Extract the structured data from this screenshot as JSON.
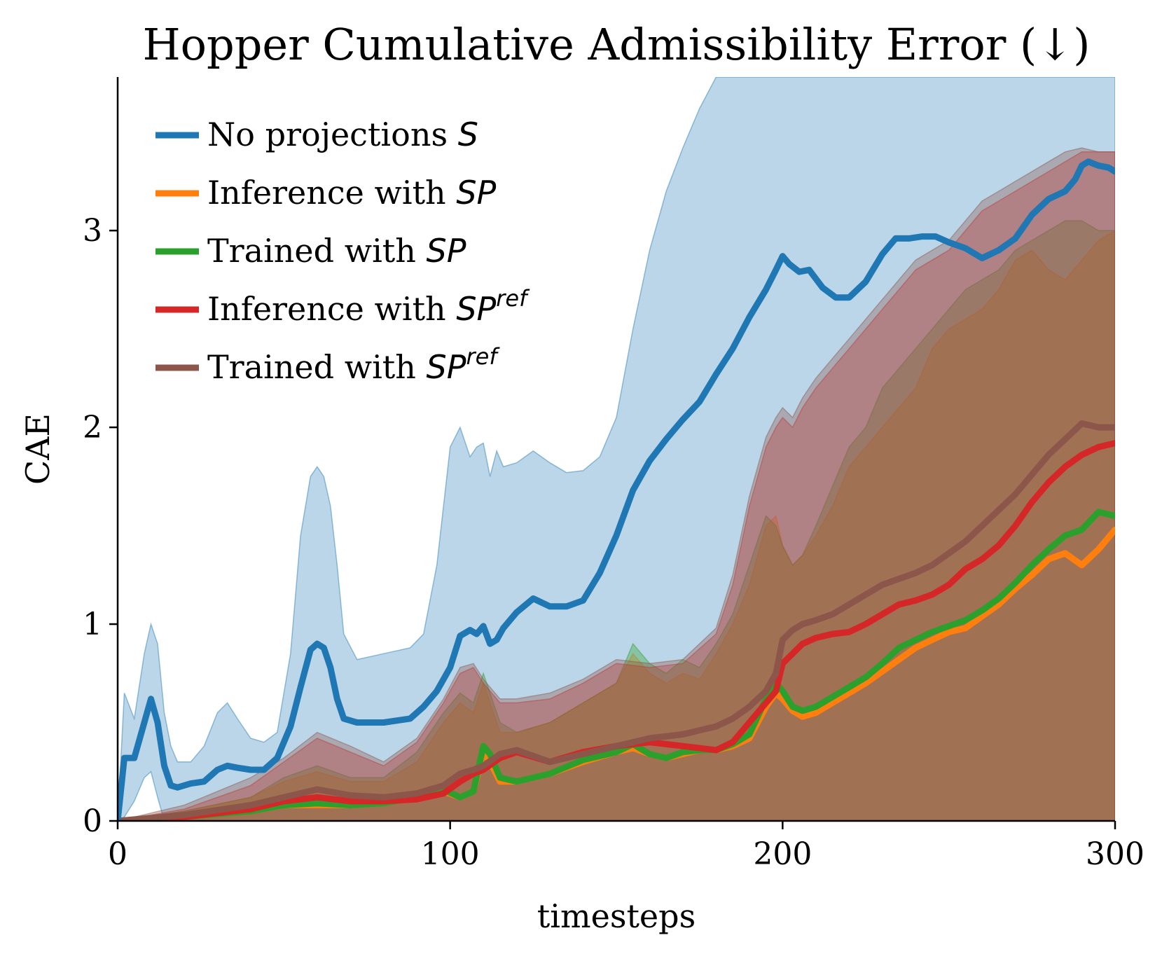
{
  "chart_data": {
    "type": "line",
    "title": "Hopper Cumulative Admissibility Error (↓)",
    "xlabel": "timesteps",
    "ylabel": "CAE",
    "xlim": [
      0,
      300
    ],
    "ylim": [
      0,
      3.78
    ],
    "xticks": [
      0,
      100,
      200,
      300
    ],
    "yticks": [
      0,
      1,
      2,
      3
    ],
    "xtick_labels": [
      "0",
      "100",
      "200",
      "300"
    ],
    "ytick_labels": [
      "0",
      "1",
      "2",
      "3"
    ],
    "grid": false,
    "legend_position": "top-left",
    "series": [
      {
        "name": "No projections",
        "math": "S",
        "sup": "",
        "color": "#1f77b4",
        "x": [
          0,
          2,
          5,
          8,
          10,
          12,
          14,
          16,
          18,
          22,
          26,
          30,
          33,
          36,
          40,
          44,
          48,
          52,
          55,
          58,
          60,
          62,
          64,
          66,
          68,
          72,
          80,
          88,
          92,
          96,
          100,
          103,
          106,
          108,
          110,
          112,
          114,
          116,
          120,
          125,
          130,
          135,
          140,
          145,
          150,
          155,
          160,
          165,
          170,
          175,
          180,
          185,
          190,
          195,
          198,
          200,
          202,
          205,
          208,
          212,
          216,
          220,
          225,
          230,
          234,
          238,
          242,
          246,
          250,
          255,
          260,
          265,
          270,
          275,
          280,
          285,
          288,
          290,
          292,
          295,
          298,
          300
        ],
        "y": [
          0.0,
          0.32,
          0.32,
          0.5,
          0.62,
          0.5,
          0.28,
          0.18,
          0.17,
          0.19,
          0.2,
          0.26,
          0.28,
          0.27,
          0.26,
          0.26,
          0.32,
          0.48,
          0.68,
          0.87,
          0.9,
          0.88,
          0.78,
          0.62,
          0.52,
          0.5,
          0.5,
          0.52,
          0.58,
          0.66,
          0.78,
          0.94,
          0.97,
          0.95,
          0.99,
          0.9,
          0.92,
          0.98,
          1.06,
          1.13,
          1.09,
          1.09,
          1.12,
          1.26,
          1.45,
          1.68,
          1.83,
          1.94,
          2.04,
          2.13,
          2.27,
          2.4,
          2.56,
          2.7,
          2.8,
          2.87,
          2.83,
          2.79,
          2.8,
          2.71,
          2.66,
          2.66,
          2.74,
          2.88,
          2.96,
          2.96,
          2.97,
          2.97,
          2.94,
          2.91,
          2.86,
          2.9,
          2.96,
          3.08,
          3.16,
          3.2,
          3.26,
          3.33,
          3.35,
          3.33,
          3.32,
          3.3
        ],
        "band_lower": [
          0.0,
          0.02,
          0.1,
          0.22,
          0.25,
          0.12,
          0.0,
          0.0,
          0.0,
          0.0,
          0.0,
          0.0,
          0.0,
          0.0,
          0.0,
          0.0,
          0.0,
          0.0,
          0.0,
          0.0,
          0.0,
          0.0,
          0.0,
          0.0,
          0.0,
          0.0,
          0.0,
          0.0,
          0.0,
          0.0,
          0.0,
          0.0,
          0.0,
          0.0,
          0.0,
          0.0,
          0.0,
          0.0,
          0.0,
          0.0,
          0.0,
          0.0,
          0.0,
          0.0,
          0.0,
          0.0,
          0.0,
          0.0,
          0.0,
          0.0,
          0.0,
          0.0,
          0.0,
          0.0,
          0.0,
          0.0,
          0.0,
          0.0,
          0.0,
          0.0,
          0.0,
          0.0,
          0.0,
          0.0,
          0.0,
          0.0,
          0.0,
          0.0,
          0.0,
          0.0,
          0.0,
          0.0,
          0.0,
          0.0,
          0.0,
          0.0,
          0.0,
          0.0,
          0.0,
          0.0,
          0.0,
          0.0
        ],
        "band_upper": [
          0.0,
          0.65,
          0.52,
          0.85,
          1.0,
          0.9,
          0.55,
          0.38,
          0.3,
          0.3,
          0.38,
          0.55,
          0.6,
          0.52,
          0.42,
          0.4,
          0.45,
          0.85,
          1.45,
          1.75,
          1.8,
          1.75,
          1.6,
          1.3,
          0.95,
          0.82,
          0.85,
          0.88,
          0.95,
          1.3,
          1.9,
          2.0,
          1.85,
          1.9,
          1.92,
          1.75,
          1.88,
          1.8,
          1.82,
          1.88,
          1.82,
          1.77,
          1.78,
          1.85,
          2.05,
          2.5,
          2.9,
          3.2,
          3.42,
          3.62,
          3.78,
          3.78,
          3.78,
          3.78,
          3.78,
          3.78,
          3.78,
          3.78,
          3.78,
          3.78,
          3.78,
          3.78,
          3.78,
          3.78,
          3.78,
          3.78,
          3.78,
          3.78,
          3.78,
          3.78,
          3.78,
          3.78,
          3.78,
          3.78,
          3.78,
          3.78,
          3.78,
          3.78,
          3.78,
          3.78,
          3.78,
          3.78
        ]
      },
      {
        "name": "Inference with",
        "math": "SP",
        "sup": "",
        "color": "#ff7f0e",
        "x": [
          0,
          20,
          40,
          50,
          60,
          70,
          80,
          90,
          98,
          103,
          107,
          110,
          112,
          115,
          120,
          130,
          140,
          150,
          155,
          160,
          165,
          170,
          175,
          180,
          185,
          190,
          195,
          198,
          200,
          203,
          206,
          210,
          215,
          220,
          225,
          230,
          235,
          240,
          245,
          250,
          255,
          260,
          265,
          270,
          275,
          280,
          285,
          290,
          295,
          300
        ],
        "y": [
          0.0,
          0.02,
          0.05,
          0.08,
          0.08,
          0.08,
          0.09,
          0.12,
          0.15,
          0.12,
          0.15,
          0.35,
          0.3,
          0.2,
          0.2,
          0.24,
          0.3,
          0.35,
          0.37,
          0.34,
          0.32,
          0.34,
          0.36,
          0.36,
          0.38,
          0.42,
          0.58,
          0.65,
          0.62,
          0.56,
          0.53,
          0.55,
          0.6,
          0.65,
          0.7,
          0.76,
          0.82,
          0.88,
          0.92,
          0.96,
          0.98,
          1.04,
          1.1,
          1.18,
          1.25,
          1.33,
          1.36,
          1.3,
          1.38,
          1.48
        ],
        "band_lower": [
          0.0,
          0.0,
          0.0,
          0.0,
          0.0,
          0.0,
          0.0,
          0.0,
          0.0,
          0.0,
          0.0,
          0.0,
          0.0,
          0.0,
          0.0,
          0.0,
          0.0,
          0.0,
          0.0,
          0.0,
          0.0,
          0.0,
          0.0,
          0.0,
          0.0,
          0.0,
          0.0,
          0.0,
          0.0,
          0.0,
          0.0,
          0.0,
          0.0,
          0.0,
          0.0,
          0.0,
          0.0,
          0.0,
          0.0,
          0.0,
          0.0,
          0.0,
          0.0,
          0.0,
          0.0,
          0.0,
          0.0,
          0.0,
          0.0,
          0.0
        ],
        "band_upper": [
          0.0,
          0.05,
          0.12,
          0.2,
          0.25,
          0.2,
          0.2,
          0.3,
          0.5,
          0.6,
          0.55,
          0.7,
          0.6,
          0.45,
          0.45,
          0.5,
          0.6,
          0.7,
          0.85,
          0.75,
          0.7,
          0.75,
          0.72,
          0.85,
          1.0,
          1.2,
          1.5,
          1.55,
          1.4,
          1.3,
          1.35,
          1.45,
          1.6,
          1.8,
          1.9,
          2.0,
          2.1,
          2.2,
          2.4,
          2.5,
          2.55,
          2.6,
          2.7,
          2.85,
          2.9,
          2.8,
          2.75,
          2.85,
          2.95,
          3.0
        ]
      },
      {
        "name": "Trained with",
        "math": "SP",
        "sup": "",
        "color": "#2ca02c",
        "x": [
          0,
          20,
          40,
          50,
          60,
          70,
          80,
          90,
          98,
          103,
          107,
          110,
          112,
          115,
          120,
          130,
          140,
          150,
          155,
          160,
          165,
          170,
          175,
          180,
          185,
          190,
          195,
          198,
          200,
          203,
          206,
          210,
          215,
          220,
          225,
          230,
          235,
          240,
          245,
          250,
          255,
          260,
          265,
          270,
          275,
          280,
          285,
          290,
          295,
          300
        ],
        "y": [
          0.0,
          0.02,
          0.05,
          0.08,
          0.09,
          0.08,
          0.09,
          0.12,
          0.16,
          0.12,
          0.15,
          0.38,
          0.34,
          0.22,
          0.2,
          0.24,
          0.31,
          0.35,
          0.39,
          0.34,
          0.32,
          0.35,
          0.36,
          0.36,
          0.39,
          0.44,
          0.62,
          0.7,
          0.66,
          0.58,
          0.56,
          0.58,
          0.63,
          0.68,
          0.73,
          0.8,
          0.88,
          0.92,
          0.96,
          0.99,
          1.02,
          1.07,
          1.13,
          1.21,
          1.3,
          1.38,
          1.45,
          1.48,
          1.57,
          1.55
        ],
        "band_lower": [
          0.0,
          0.0,
          0.0,
          0.0,
          0.0,
          0.0,
          0.0,
          0.0,
          0.0,
          0.0,
          0.0,
          0.0,
          0.0,
          0.0,
          0.0,
          0.0,
          0.0,
          0.0,
          0.0,
          0.0,
          0.0,
          0.0,
          0.0,
          0.0,
          0.0,
          0.0,
          0.0,
          0.0,
          0.0,
          0.0,
          0.0,
          0.0,
          0.0,
          0.0,
          0.0,
          0.0,
          0.0,
          0.0,
          0.0,
          0.0,
          0.0,
          0.0,
          0.0,
          0.0,
          0.0,
          0.0,
          0.0,
          0.0,
          0.0,
          0.0
        ],
        "band_upper": [
          0.0,
          0.05,
          0.12,
          0.22,
          0.28,
          0.22,
          0.22,
          0.35,
          0.55,
          0.65,
          0.6,
          0.75,
          0.65,
          0.5,
          0.45,
          0.5,
          0.6,
          0.7,
          0.9,
          0.8,
          0.75,
          0.82,
          0.78,
          0.9,
          1.05,
          1.3,
          1.55,
          1.5,
          1.4,
          1.3,
          1.35,
          1.5,
          1.7,
          1.9,
          2.0,
          2.2,
          2.3,
          2.4,
          2.5,
          2.6,
          2.7,
          2.75,
          2.8,
          2.9,
          2.95,
          3.0,
          3.05,
          3.05,
          3.0,
          3.0
        ]
      },
      {
        "name": "Inference with",
        "math": "SP",
        "sup": "ref",
        "color": "#d62728",
        "x": [
          0,
          20,
          40,
          50,
          60,
          70,
          80,
          90,
          98,
          103,
          107,
          110,
          115,
          120,
          130,
          140,
          150,
          160,
          170,
          180,
          185,
          190,
          195,
          198,
          200,
          203,
          206,
          210,
          215,
          220,
          225,
          230,
          235,
          240,
          245,
          250,
          255,
          260,
          265,
          270,
          275,
          280,
          285,
          290,
          295,
          300
        ],
        "y": [
          0.0,
          0.02,
          0.06,
          0.1,
          0.12,
          0.1,
          0.1,
          0.11,
          0.14,
          0.2,
          0.24,
          0.26,
          0.32,
          0.35,
          0.3,
          0.35,
          0.38,
          0.4,
          0.38,
          0.36,
          0.4,
          0.5,
          0.6,
          0.66,
          0.8,
          0.85,
          0.9,
          0.93,
          0.95,
          0.96,
          1.0,
          1.05,
          1.1,
          1.12,
          1.15,
          1.2,
          1.28,
          1.33,
          1.4,
          1.5,
          1.62,
          1.72,
          1.8,
          1.86,
          1.9,
          1.92
        ],
        "band_lower": [
          0.0,
          0.0,
          0.0,
          0.0,
          0.0,
          0.0,
          0.0,
          0.0,
          0.0,
          0.0,
          0.0,
          0.0,
          0.0,
          0.0,
          0.0,
          0.0,
          0.0,
          0.0,
          0.0,
          0.0,
          0.0,
          0.0,
          0.0,
          0.0,
          0.0,
          0.0,
          0.0,
          0.0,
          0.0,
          0.0,
          0.0,
          0.0,
          0.0,
          0.0,
          0.0,
          0.0,
          0.0,
          0.0,
          0.0,
          0.0,
          0.0,
          0.0,
          0.0,
          0.0,
          0.0,
          0.0
        ],
        "band_upper": [
          0.0,
          0.06,
          0.18,
          0.3,
          0.42,
          0.35,
          0.28,
          0.4,
          0.6,
          0.75,
          0.78,
          0.7,
          0.6,
          0.6,
          0.62,
          0.7,
          0.8,
          0.78,
          0.8,
          0.95,
          1.2,
          1.6,
          1.9,
          2.0,
          2.05,
          2.0,
          2.1,
          2.2,
          2.3,
          2.4,
          2.5,
          2.6,
          2.7,
          2.8,
          2.85,
          2.9,
          3.0,
          3.1,
          3.15,
          3.2,
          3.25,
          3.3,
          3.35,
          3.4,
          3.4,
          3.4
        ]
      },
      {
        "name": "Trained with",
        "math": "SP",
        "sup": "ref",
        "color": "#8c564b",
        "x": [
          0,
          20,
          40,
          50,
          60,
          70,
          80,
          90,
          98,
          103,
          107,
          110,
          115,
          120,
          130,
          140,
          150,
          160,
          170,
          180,
          185,
          190,
          195,
          198,
          200,
          203,
          206,
          210,
          215,
          220,
          225,
          230,
          235,
          240,
          245,
          250,
          255,
          260,
          265,
          270,
          275,
          280,
          285,
          290,
          295,
          300
        ],
        "y": [
          0.0,
          0.03,
          0.08,
          0.12,
          0.16,
          0.13,
          0.12,
          0.14,
          0.18,
          0.24,
          0.26,
          0.28,
          0.34,
          0.36,
          0.3,
          0.34,
          0.38,
          0.42,
          0.44,
          0.48,
          0.52,
          0.58,
          0.66,
          0.75,
          0.92,
          0.97,
          1.0,
          1.02,
          1.05,
          1.1,
          1.15,
          1.2,
          1.23,
          1.26,
          1.3,
          1.36,
          1.42,
          1.5,
          1.58,
          1.66,
          1.76,
          1.86,
          1.94,
          2.02,
          2.0,
          2.0
        ],
        "band_lower": [
          0.0,
          0.0,
          0.0,
          0.0,
          0.0,
          0.0,
          0.0,
          0.0,
          0.0,
          0.0,
          0.0,
          0.0,
          0.0,
          0.0,
          0.0,
          0.0,
          0.0,
          0.0,
          0.0,
          0.0,
          0.0,
          0.0,
          0.0,
          0.0,
          0.0,
          0.0,
          0.0,
          0.0,
          0.0,
          0.0,
          0.0,
          0.0,
          0.0,
          0.0,
          0.0,
          0.0,
          0.0,
          0.0,
          0.0,
          0.0,
          0.0,
          0.0,
          0.0,
          0.0,
          0.0,
          0.0
        ],
        "band_upper": [
          0.0,
          0.08,
          0.22,
          0.32,
          0.45,
          0.38,
          0.3,
          0.42,
          0.62,
          0.78,
          0.8,
          0.72,
          0.62,
          0.62,
          0.65,
          0.72,
          0.82,
          0.8,
          0.82,
          0.98,
          1.25,
          1.65,
          1.95,
          2.05,
          2.1,
          2.05,
          2.15,
          2.25,
          2.35,
          2.45,
          2.55,
          2.65,
          2.75,
          2.85,
          2.9,
          2.95,
          3.05,
          3.15,
          3.2,
          3.25,
          3.3,
          3.35,
          3.4,
          3.42,
          3.4,
          3.4
        ]
      }
    ]
  }
}
